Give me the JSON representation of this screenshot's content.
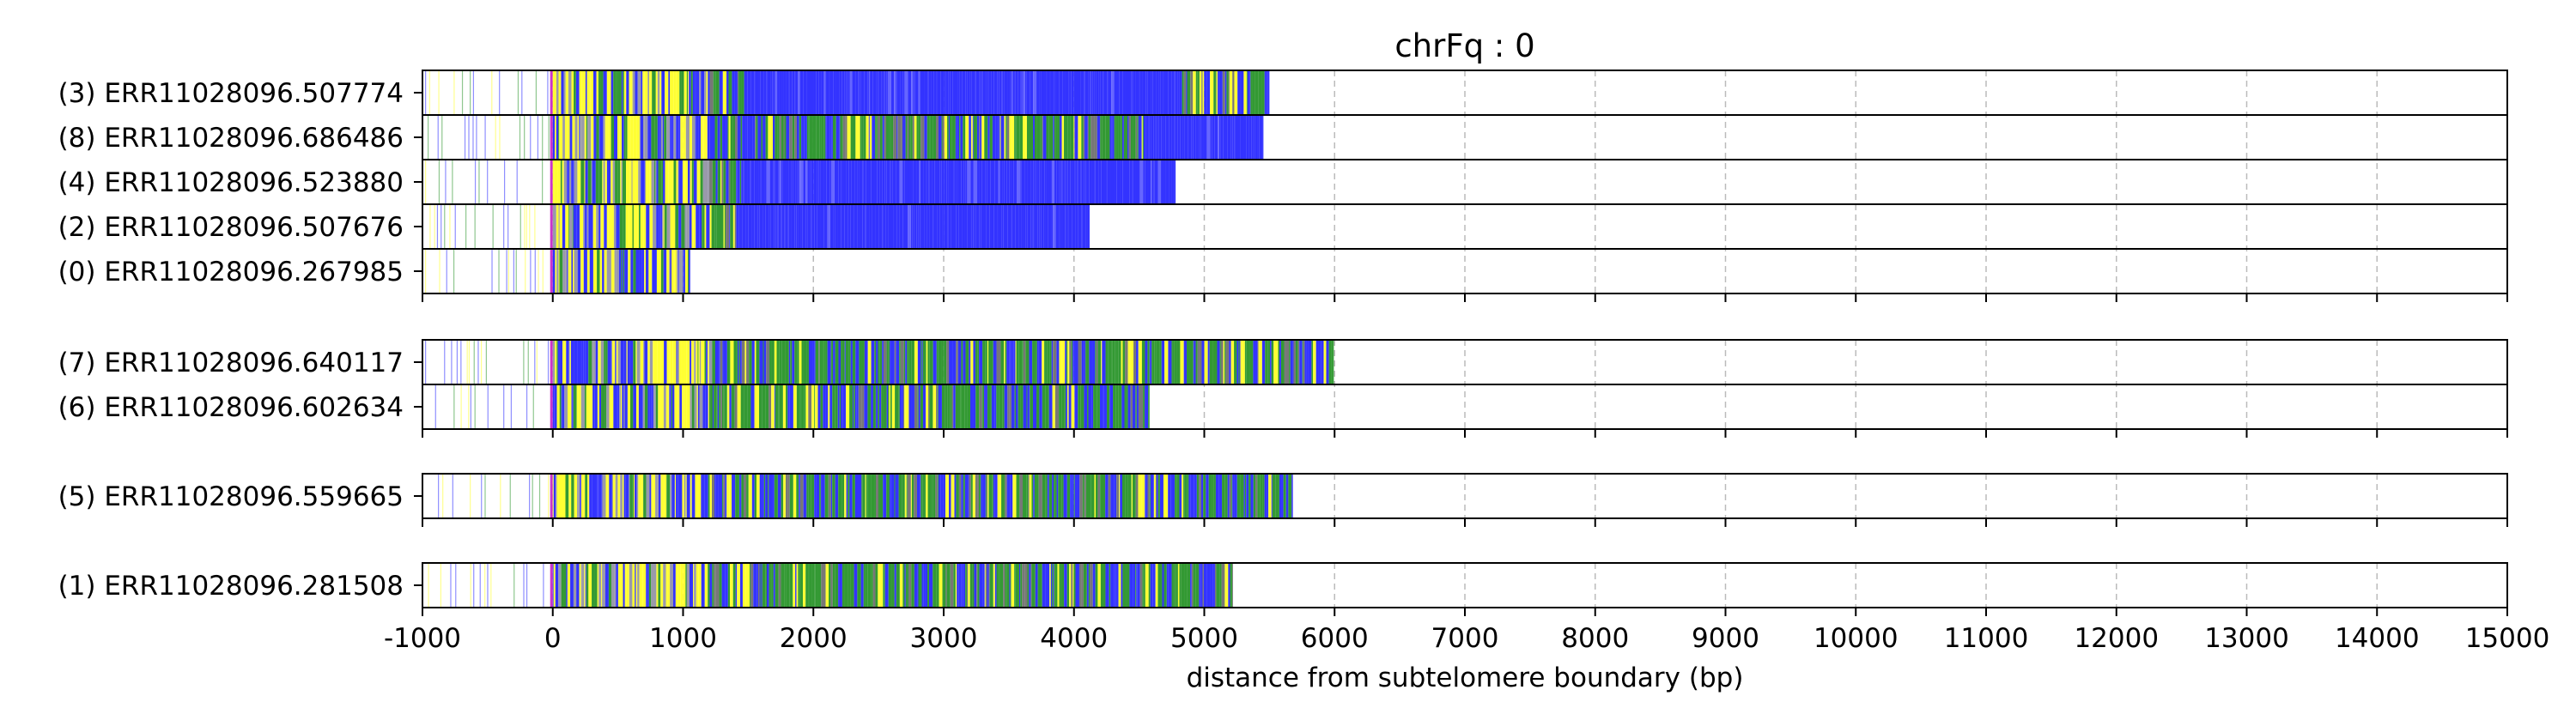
{
  "chart_data": {
    "type": "bar",
    "title": "chrFq : 0",
    "xlabel": "distance from subtelomere boundary (bp)",
    "ylabel": "",
    "xlim": [
      -1000,
      15000
    ],
    "xticks": [
      "-1000",
      "0",
      "1000",
      "2000",
      "3000",
      "4000",
      "5000",
      "6000",
      "7000",
      "8000",
      "9000",
      "10000",
      "11000",
      "12000",
      "13000",
      "14000",
      "15000"
    ],
    "grid": "vertical dashed",
    "colors": {
      "blue": "#3333ff",
      "green": "#339933",
      "yellow": "#ffff33",
      "magenta": "#cc33cc",
      "tail_blue": "#3333ff"
    },
    "groups": [
      {
        "reads": [
          {
            "label": "(3) ERR11028096.507774",
            "end": 5500,
            "blue_from": 1450,
            "blue_to": 4820,
            "pattern": "mixed_then_blue"
          },
          {
            "label": "(8) ERR11028096.686486",
            "end": 5450,
            "blue_from": 4550,
            "blue_to": 5450,
            "pattern": "mixed_then_blue"
          },
          {
            "label": "(4) ERR11028096.523880",
            "end": 4780,
            "blue_from": 1450,
            "blue_to": 4780,
            "pattern": "mixed_then_blue"
          },
          {
            "label": "(2) ERR11028096.507676",
            "end": 4120,
            "blue_from": 1400,
            "blue_to": 4120,
            "pattern": "mixed_then_blue"
          },
          {
            "label": "(0) ERR11028096.267985",
            "end": 1050,
            "blue_from": 0,
            "blue_to": 0,
            "pattern": "mixed"
          }
        ]
      },
      {
        "reads": [
          {
            "label": "(7) ERR11028096.640117",
            "end": 5990,
            "blue_from": 0,
            "blue_to": 0,
            "pattern": "mixed"
          },
          {
            "label": "(6) ERR11028096.602634",
            "end": 4580,
            "blue_from": 0,
            "blue_to": 0,
            "pattern": "mixed"
          }
        ]
      },
      {
        "reads": [
          {
            "label": "(5) ERR11028096.559665",
            "end": 5680,
            "blue_from": 0,
            "blue_to": 0,
            "pattern": "mixed"
          }
        ]
      },
      {
        "reads": [
          {
            "label": "(1) ERR11028096.281508",
            "end": 5220,
            "blue_from": 0,
            "blue_to": 0,
            "pattern": "mixed"
          }
        ]
      }
    ]
  }
}
